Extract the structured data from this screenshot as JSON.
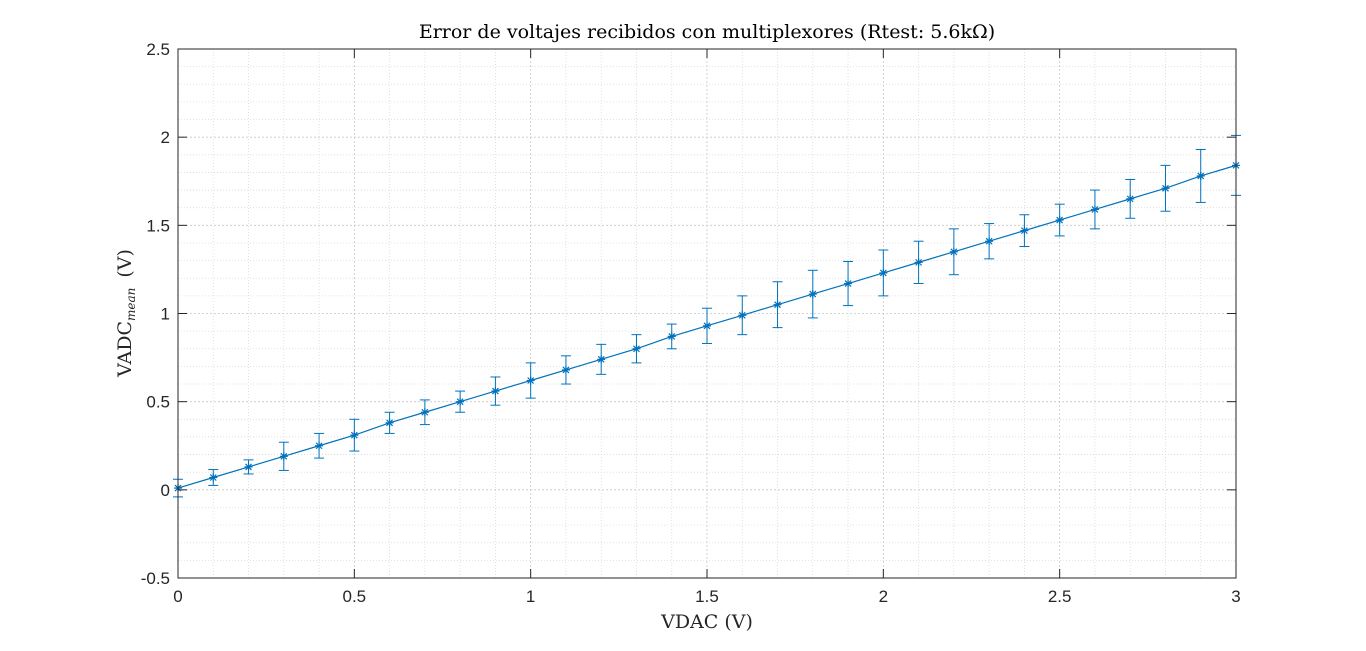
{
  "chart_data": {
    "type": "line",
    "title": "Error de voltajes recibidos con multiplexores (Rtest: 5.6kΩ)",
    "xlabel": "VDAC (V)",
    "ylabel_main": "VADC",
    "ylabel_sub": "mean",
    "ylabel_unit": "(V)",
    "xlim": [
      0,
      3
    ],
    "ylim": [
      -0.5,
      2.5
    ],
    "xticks": [
      "0",
      "0.5",
      "1",
      "1.5",
      "2",
      "2.5",
      "3"
    ],
    "xtick_values": [
      0,
      0.5,
      1,
      1.5,
      2,
      2.5,
      3
    ],
    "yticks": [
      "-0.5",
      "0",
      "0.5",
      "1",
      "1.5",
      "2",
      "2.5"
    ],
    "ytick_values": [
      -0.5,
      0,
      0.5,
      1,
      1.5,
      2,
      2.5
    ],
    "grid": true,
    "minor_grid": true,
    "line_color": "#0072BD",
    "series": [
      {
        "marker": "asterisk",
        "x": [
          0,
          0.1,
          0.2,
          0.3,
          0.4,
          0.5,
          0.6,
          0.7,
          0.8,
          0.9,
          1.0,
          1.1,
          1.2,
          1.3,
          1.4,
          1.5,
          1.6,
          1.7,
          1.8,
          1.9,
          2.0,
          2.1,
          2.2,
          2.3,
          2.4,
          2.5,
          2.6,
          2.7,
          2.8,
          2.9,
          3.0
        ],
        "y": [
          0.01,
          0.07,
          0.13,
          0.19,
          0.25,
          0.31,
          0.38,
          0.44,
          0.5,
          0.56,
          0.62,
          0.68,
          0.74,
          0.8,
          0.87,
          0.93,
          0.99,
          1.05,
          1.11,
          1.17,
          1.23,
          1.29,
          1.35,
          1.41,
          1.47,
          1.53,
          1.59,
          1.65,
          1.71,
          1.78,
          1.84
        ],
        "err": [
          0.05,
          0.045,
          0.04,
          0.08,
          0.07,
          0.09,
          0.06,
          0.07,
          0.06,
          0.08,
          0.1,
          0.08,
          0.085,
          0.08,
          0.07,
          0.1,
          0.11,
          0.13,
          0.135,
          0.125,
          0.13,
          0.12,
          0.13,
          0.1,
          0.09,
          0.09,
          0.11,
          0.11,
          0.13,
          0.15,
          0.17
        ]
      }
    ]
  }
}
